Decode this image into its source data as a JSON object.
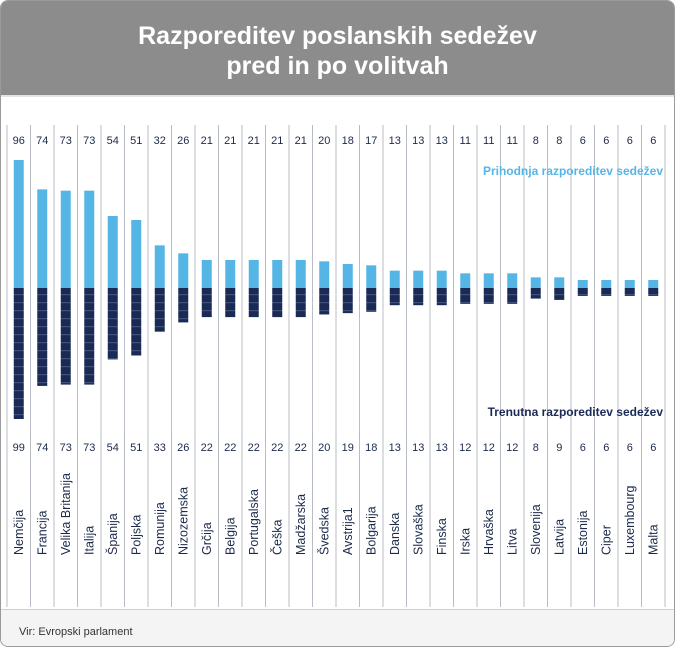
{
  "title_line1": "Razporeditev poslanskih sedežev",
  "title_line2": "pred in po volitvah",
  "source": "Vir: Evropski parlament",
  "colors": {
    "header": "#8c8c8c",
    "future": "#55b6e6",
    "current": "#1a2a57",
    "text": "#1b2a4a"
  },
  "chart_data": {
    "type": "bar",
    "categories": [
      "Nemčija",
      "Francija",
      "Velika Britanija",
      "Italija",
      "Španija",
      "Poljska",
      "Romunija",
      "Nizozemska",
      "Grčija",
      "Belgija",
      "Portugalska",
      "Češka",
      "Madžarska",
      "Švedska",
      "Avstrija1",
      "Bolgarija",
      "Danska",
      "Slovaška",
      "Finska",
      "Irska",
      "Hrvaška",
      "Litva",
      "Slovenija",
      "Latvija",
      "Estonija",
      "Ciper",
      "Luxembourg",
      "Malta"
    ],
    "series": [
      {
        "name": "Prihodnja razporeditev sedežev",
        "direction": "up",
        "values": [
          96,
          74,
          73,
          73,
          54,
          51,
          32,
          26,
          21,
          21,
          21,
          21,
          21,
          20,
          18,
          17,
          13,
          13,
          13,
          11,
          11,
          11,
          8,
          8,
          6,
          6,
          6,
          6
        ]
      },
      {
        "name": "Trenutna razporeditev sedežev",
        "direction": "down",
        "values": [
          99,
          74,
          73,
          73,
          54,
          51,
          33,
          26,
          22,
          22,
          22,
          22,
          22,
          20,
          19,
          18,
          13,
          13,
          13,
          12,
          12,
          12,
          8,
          9,
          6,
          6,
          6,
          6
        ]
      }
    ],
    "legend": [
      "Prihodnja razporeditev sedežev",
      "Trenutna razporeditev sedežev"
    ]
  }
}
